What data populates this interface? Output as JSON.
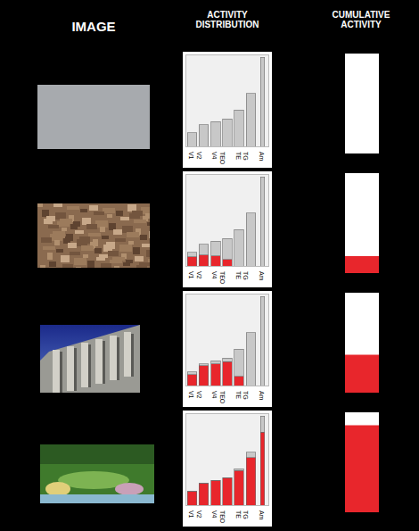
{
  "headers": [
    "IMAGE",
    "ACTIVITY DISTRIBUTION",
    "CUMULATIVE ACTIVITY"
  ],
  "chart_data": [
    {
      "type": "bar",
      "categories": [
        "V1",
        "V2",
        "V4",
        "TEO",
        "TE",
        "TG",
        "Am"
      ],
      "stacked": true,
      "grid": false,
      "tick_labels": "x",
      "ylim": [
        0,
        100
      ],
      "yticks": [],
      "series": [
        {
          "color": "#e8262c",
          "values": [
            0,
            0,
            0,
            0,
            0,
            0,
            0
          ]
        },
        {
          "color": "#c8c8c8",
          "values": [
            15,
            24,
            27,
            30,
            40,
            58,
            98
          ]
        }
      ]
    },
    {
      "type": "bar",
      "categories": [
        null
      ],
      "values": [
        0
      ],
      "color": "#e8262c",
      "ylim": [
        0,
        100
      ],
      "yticks": [],
      "tick_labels": false
    },
    {
      "type": "bar",
      "categories": [
        "V1",
        "V2",
        "V4",
        "TEO",
        "TE",
        "TG",
        "Am"
      ],
      "stacked": true,
      "grid": false,
      "tick_labels": "x",
      "ylim": [
        0,
        100
      ],
      "yticks": [],
      "series": [
        {
          "color": "#e8262c",
          "values": [
            10,
            12,
            11,
            7,
            0,
            0,
            0
          ]
        },
        {
          "color": "#c8c8c8",
          "values": [
            5,
            12,
            16,
            23,
            40,
            58,
            98
          ]
        }
      ]
    },
    {
      "type": "bar",
      "categories": [
        null
      ],
      "values": [
        17
      ],
      "color": "#e8262c",
      "ylim": [
        0,
        100
      ],
      "yticks": [],
      "tick_labels": false
    },
    {
      "type": "bar",
      "categories": [
        "V1",
        "V2",
        "V4",
        "TEO",
        "TE",
        "TG",
        "Am"
      ],
      "stacked": true,
      "grid": false,
      "tick_labels": "x",
      "ylim": [
        0,
        100
      ],
      "yticks": [],
      "series": [
        {
          "color": "#e8262c",
          "values": [
            12,
            22,
            24,
            26,
            10,
            0,
            0
          ]
        },
        {
          "color": "#c8c8c8",
          "values": [
            3,
            2,
            3,
            4,
            30,
            58,
            98
          ]
        }
      ]
    },
    {
      "type": "bar",
      "categories": [
        null
      ],
      "values": [
        38
      ],
      "color": "#e8262c",
      "ylim": [
        0,
        100
      ],
      "yticks": [],
      "tick_labels": false
    },
    {
      "type": "bar",
      "categories": [
        "V1",
        "V2",
        "V4",
        "TEO",
        "TE",
        "TG",
        "Am"
      ],
      "stacked": true,
      "grid": false,
      "tick_labels": "x",
      "ylim": [
        0,
        100
      ],
      "yticks": [],
      "series": [
        {
          "color": "#e8262c",
          "values": [
            15,
            24,
            27,
            30,
            38,
            52,
            80
          ]
        },
        {
          "color": "#c8c8c8",
          "values": [
            0,
            0,
            0,
            0,
            2,
            6,
            18
          ]
        }
      ]
    },
    {
      "type": "bar",
      "categories": [
        null
      ],
      "values": [
        87
      ],
      "color": "#e8262c",
      "ylim": [
        0,
        100
      ],
      "yticks": [],
      "tick_labels": false
    }
  ]
}
